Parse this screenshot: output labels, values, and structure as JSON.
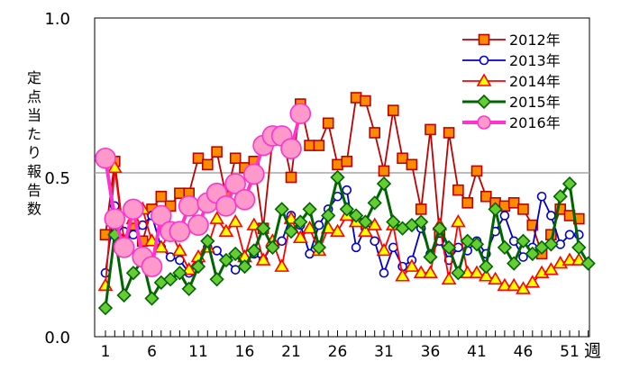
{
  "chart_data": {
    "type": "line",
    "ylabel": "定点当たり報告数",
    "xlabel": "週",
    "ylim": [
      0,
      1.0
    ],
    "xlim": [
      1,
      53
    ],
    "yticks": [
      "0.0",
      "0.5",
      "1.0"
    ],
    "xticks": [
      1,
      6,
      11,
      16,
      21,
      26,
      31,
      36,
      41,
      46,
      51
    ],
    "grid": "horizontal gridline at 0.5",
    "legend_position": "top-right",
    "series": [
      {
        "name": "2012年",
        "color": "#c00000",
        "fill": "#ff8c00",
        "marker": "square",
        "x": [
          1,
          2,
          3,
          4,
          5,
          6,
          7,
          8,
          9,
          10,
          11,
          12,
          13,
          14,
          15,
          16,
          17,
          18,
          19,
          20,
          21,
          22,
          23,
          24,
          25,
          26,
          27,
          28,
          29,
          30,
          31,
          32,
          33,
          34,
          35,
          36,
          37,
          38,
          39,
          40,
          41,
          42,
          43,
          44,
          45,
          46,
          47,
          48,
          49,
          50,
          51,
          52
        ],
        "values": [
          0.32,
          0.55,
          0.31,
          0.35,
          0.3,
          0.4,
          0.44,
          0.41,
          0.45,
          0.45,
          0.56,
          0.54,
          0.58,
          0.44,
          0.56,
          0.53,
          0.55,
          0.34,
          0.62,
          0.64,
          0.5,
          0.73,
          0.6,
          0.6,
          0.67,
          0.54,
          0.55,
          0.75,
          0.74,
          0.64,
          0.52,
          0.71,
          0.56,
          0.54,
          0.4,
          0.65,
          0.32,
          0.64,
          0.46,
          0.42,
          0.52,
          0.44,
          0.42,
          0.41,
          0.42,
          0.4,
          0.35,
          0.26,
          0.32,
          0.4,
          0.38,
          0.37
        ]
      },
      {
        "name": "2013年",
        "color": "#0000cc",
        "fill": "#ffffff",
        "marker": "circle",
        "x": [
          1,
          2,
          3,
          4,
          5,
          6,
          7,
          8,
          9,
          10,
          11,
          12,
          13,
          14,
          15,
          16,
          17,
          18,
          19,
          20,
          21,
          22,
          23,
          24,
          25,
          26,
          27,
          28,
          29,
          30,
          31,
          32,
          33,
          34,
          35,
          36,
          37,
          38,
          39,
          40,
          41,
          42,
          43,
          44,
          45,
          46,
          47,
          48,
          49,
          50,
          51,
          52
        ],
        "values": [
          0.2,
          0.41,
          0.33,
          0.32,
          0.35,
          0.38,
          0.28,
          0.25,
          0.24,
          0.2,
          0.23,
          0.28,
          0.27,
          0.24,
          0.21,
          0.23,
          0.26,
          0.24,
          0.29,
          0.3,
          0.38,
          0.35,
          0.26,
          0.35,
          0.4,
          0.44,
          0.46,
          0.28,
          0.34,
          0.3,
          0.2,
          0.28,
          0.22,
          0.24,
          0.34,
          0.26,
          0.3,
          0.24,
          0.28,
          0.27,
          0.3,
          0.26,
          0.33,
          0.38,
          0.3,
          0.25,
          0.28,
          0.44,
          0.38,
          0.29,
          0.32,
          0.32
        ]
      },
      {
        "name": "2014年",
        "color": "#ff0000",
        "fill": "#ffff00",
        "marker": "triangle",
        "x": [
          1,
          2,
          3,
          4,
          5,
          6,
          7,
          8,
          9,
          10,
          11,
          12,
          13,
          14,
          15,
          16,
          17,
          18,
          19,
          20,
          21,
          22,
          23,
          24,
          25,
          26,
          27,
          28,
          29,
          30,
          31,
          32,
          33,
          34,
          35,
          36,
          37,
          38,
          39,
          40,
          41,
          42,
          43,
          44,
          45,
          46,
          47,
          48,
          49,
          50,
          51,
          52
        ],
        "values": [
          0.16,
          0.53,
          0.3,
          0.37,
          0.4,
          0.3,
          0.28,
          0.33,
          0.27,
          0.21,
          0.25,
          0.28,
          0.37,
          0.33,
          0.36,
          0.25,
          0.35,
          0.24,
          0.3,
          0.22,
          0.37,
          0.31,
          0.34,
          0.27,
          0.34,
          0.33,
          0.38,
          0.36,
          0.33,
          0.35,
          0.27,
          0.35,
          0.19,
          0.22,
          0.2,
          0.2,
          0.35,
          0.18,
          0.36,
          0.2,
          0.2,
          0.19,
          0.18,
          0.16,
          0.16,
          0.15,
          0.17,
          0.2,
          0.21,
          0.23,
          0.24,
          0.24
        ]
      },
      {
        "name": "2015年",
        "color": "#006400",
        "fill": "#66cc33",
        "marker": "diamond",
        "x": [
          1,
          2,
          3,
          4,
          5,
          6,
          7,
          8,
          9,
          10,
          11,
          12,
          13,
          14,
          15,
          16,
          17,
          18,
          19,
          20,
          21,
          22,
          23,
          24,
          25,
          26,
          27,
          28,
          29,
          30,
          31,
          32,
          33,
          34,
          35,
          36,
          37,
          38,
          39,
          40,
          41,
          42,
          43,
          44,
          45,
          46,
          47,
          48,
          49,
          50,
          51,
          52,
          53
        ],
        "values": [
          0.09,
          0.32,
          0.13,
          0.2,
          0.24,
          0.12,
          0.17,
          0.18,
          0.2,
          0.15,
          0.22,
          0.3,
          0.18,
          0.24,
          0.26,
          0.22,
          0.27,
          0.34,
          0.28,
          0.4,
          0.33,
          0.36,
          0.4,
          0.28,
          0.38,
          0.5,
          0.4,
          0.38,
          0.36,
          0.42,
          0.48,
          0.36,
          0.34,
          0.35,
          0.36,
          0.25,
          0.34,
          0.28,
          0.2,
          0.3,
          0.29,
          0.22,
          0.4,
          0.28,
          0.23,
          0.3,
          0.26,
          0.28,
          0.29,
          0.44,
          0.48,
          0.28,
          0.23
        ]
      },
      {
        "name": "2016年",
        "color": "#ff33cc",
        "fill": "#ff99cc",
        "marker": "circle-large",
        "x": [
          1,
          2,
          3,
          4,
          5,
          6,
          7,
          8,
          9,
          10,
          11,
          12,
          13,
          14,
          15,
          16,
          17,
          18,
          19,
          20,
          21,
          22
        ],
        "values": [
          0.56,
          0.37,
          0.28,
          0.4,
          0.25,
          0.22,
          0.38,
          0.33,
          0.33,
          0.41,
          0.35,
          0.42,
          0.45,
          0.41,
          0.48,
          0.43,
          0.51,
          0.6,
          0.63,
          0.63,
          0.59,
          0.7
        ]
      }
    ]
  }
}
